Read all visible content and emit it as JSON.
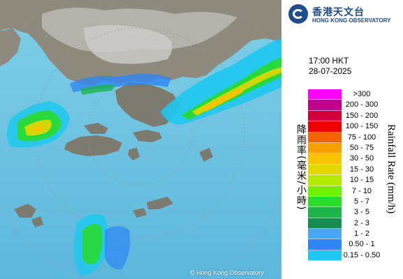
{
  "map": {
    "description_label": "Radar rainfall map of Hong Kong",
    "copyright": "© Hong Kong Observatory"
  },
  "brand": {
    "name_zh": "香港天文台",
    "name_en": "HONG KONG OBSERVATORY"
  },
  "timestamp": {
    "time": "17:00 HKT",
    "date": "28-07-2025"
  },
  "legend": {
    "unit_zh": "降雨率(毫米/小時)",
    "unit_en": "Rainfall Rate (mm/h)",
    "items": [
      {
        "label": ">300",
        "color": "#ff00ff"
      },
      {
        "label": "200 - 300",
        "color": "#c0008c"
      },
      {
        "label": "150 - 200",
        "color": "#d20036"
      },
      {
        "label": "100 - 150",
        "color": "#ee0000"
      },
      {
        "label": "75 - 100",
        "color": "#f26400"
      },
      {
        "label": "50 - 75",
        "color": "#f59f00"
      },
      {
        "label": "30 - 50",
        "color": "#f8c300"
      },
      {
        "label": "15 - 30",
        "color": "#e1d600"
      },
      {
        "label": "10 - 15",
        "color": "#b4ea00"
      },
      {
        "label": "7 - 10",
        "color": "#6cf200"
      },
      {
        "label": "5 - 7",
        "color": "#28dc28"
      },
      {
        "label": "3 - 5",
        "color": "#1bb54a"
      },
      {
        "label": "2 - 3",
        "color": "#148c50"
      },
      {
        "label": "1 - 2",
        "color": "#4aa6f0"
      },
      {
        "label": "0.50 - 1",
        "color": "#2e86f2"
      },
      {
        "label": "0.15 - 0.50",
        "color": "#1ec8f0"
      }
    ]
  }
}
